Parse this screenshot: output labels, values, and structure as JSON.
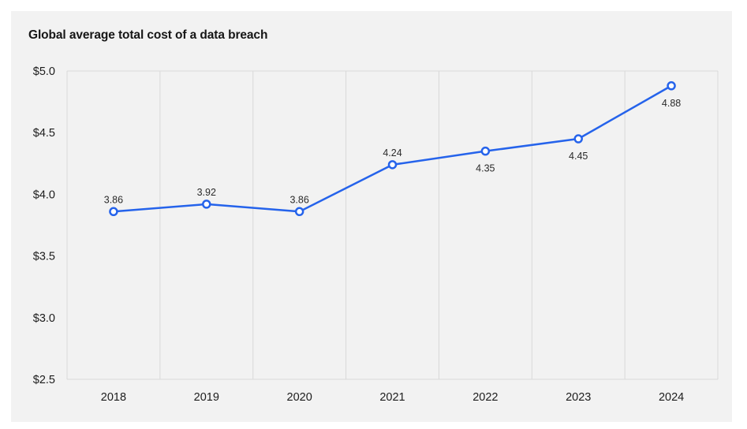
{
  "card": {
    "background": "#f2f2f2"
  },
  "chart_data": {
    "type": "line",
    "title": "Global average total cost of a data breach",
    "x_categories": [
      "2018",
      "2019",
      "2020",
      "2021",
      "2022",
      "2023",
      "2024"
    ],
    "values": [
      3.86,
      3.92,
      3.86,
      4.24,
      4.35,
      4.45,
      4.88
    ],
    "point_labels": [
      "3.86",
      "3.92",
      "3.86",
      "4.24",
      "4.35",
      "4.45",
      "4.88"
    ],
    "point_label_positions": [
      "above",
      "above",
      "above",
      "above",
      "below",
      "below",
      "below"
    ],
    "y_ticks": [
      {
        "value": 5.0,
        "label": "$5.0"
      },
      {
        "value": 4.5,
        "label": "$4.5"
      },
      {
        "value": 4.0,
        "label": "$4.0"
      },
      {
        "value": 3.5,
        "label": "$3.5"
      },
      {
        "value": 3.0,
        "label": "$3.0"
      },
      {
        "value": 2.5,
        "label": "$2.5"
      }
    ],
    "ylim": [
      2.5,
      5.0
    ],
    "xlabel": "",
    "ylabel": "",
    "grid": "vertical-only",
    "legend": "none",
    "colors": {
      "line": "#2563eb",
      "marker_fill": "#ffffff",
      "grid": "#d9d9d9"
    }
  }
}
